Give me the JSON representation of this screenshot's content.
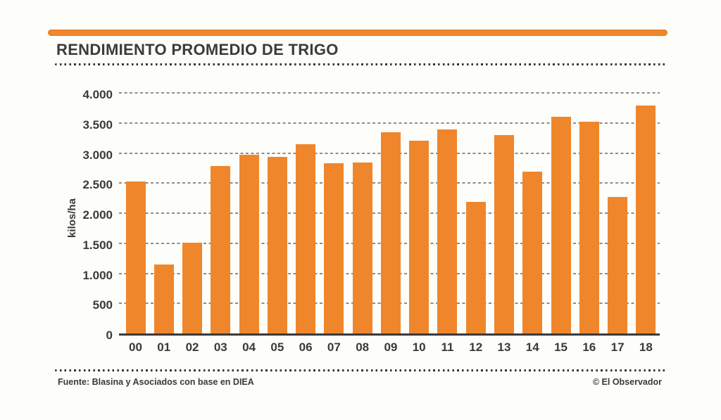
{
  "header": {
    "title": "RENDIMIENTO PROMEDIO DE TRIGO"
  },
  "footer": {
    "source": "Fuente: Blasina y Asociados con base en DIEA",
    "credit": "© El Observador"
  },
  "colors": {
    "accent_orange": "#f0862c",
    "bar_orange": "#f0862c",
    "text_dark": "#3a3a3a",
    "gridline_gray": "#8c8c8c",
    "background": "#fdfdfa"
  },
  "chart_data": {
    "type": "bar",
    "title": "RENDIMIENTO PROMEDIO DE TRIGO",
    "xlabel": "",
    "ylabel": "kilos/ha",
    "ylim": [
      0,
      4000
    ],
    "ytick_interval": 500,
    "ytick_labels": [
      "0",
      "500",
      "1.000",
      "1.500",
      "2.000",
      "2.500",
      "3.000",
      "3.500",
      "4.000"
    ],
    "grid": "horizontal-dashed",
    "legend": "none",
    "categories": [
      "00",
      "01",
      "02",
      "03",
      "04",
      "05",
      "06",
      "07",
      "08",
      "09",
      "10",
      "11",
      "12",
      "13",
      "14",
      "15",
      "16",
      "17",
      "18"
    ],
    "values": [
      2530,
      1150,
      1510,
      2780,
      2970,
      2940,
      3150,
      2830,
      2840,
      3340,
      3210,
      3390,
      2190,
      3300,
      2690,
      3600,
      3520,
      2270,
      3790
    ]
  }
}
